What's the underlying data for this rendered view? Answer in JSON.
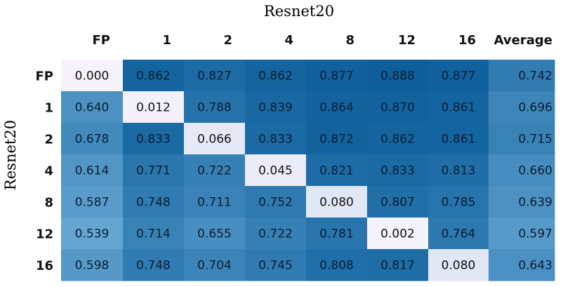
{
  "chart_data": {
    "type": "heatmap",
    "title": "Resnet20",
    "ylabel": "Resnet20",
    "column_labels": [
      "FP",
      "1",
      "2",
      "4",
      "8",
      "12",
      "16",
      "Average"
    ],
    "row_labels": [
      "FP",
      "1",
      "2",
      "4",
      "8",
      "12",
      "16"
    ],
    "values": [
      [
        "0.000",
        "0.862",
        "0.827",
        "0.862",
        "0.877",
        "0.888",
        "0.877",
        "0.742"
      ],
      [
        "0.640",
        "0.012",
        "0.788",
        "0.839",
        "0.864",
        "0.870",
        "0.861",
        "0.696"
      ],
      [
        "0.678",
        "0.833",
        "0.066",
        "0.833",
        "0.872",
        "0.862",
        "0.861",
        "0.715"
      ],
      [
        "0.614",
        "0.771",
        "0.722",
        "0.045",
        "0.821",
        "0.833",
        "0.813",
        "0.660"
      ],
      [
        "0.587",
        "0.748",
        "0.711",
        "0.752",
        "0.080",
        "0.807",
        "0.785",
        "0.639"
      ],
      [
        "0.539",
        "0.714",
        "0.655",
        "0.722",
        "0.781",
        "0.002",
        "0.764",
        "0.597"
      ],
      [
        "0.598",
        "0.748",
        "0.704",
        "0.745",
        "0.808",
        "0.817",
        "0.080",
        "0.643"
      ]
    ],
    "colormap": "white-to-blue",
    "color_low": "#f7f2fb",
    "color_high": "#0a5c99",
    "legend": "none",
    "grid": false
  }
}
